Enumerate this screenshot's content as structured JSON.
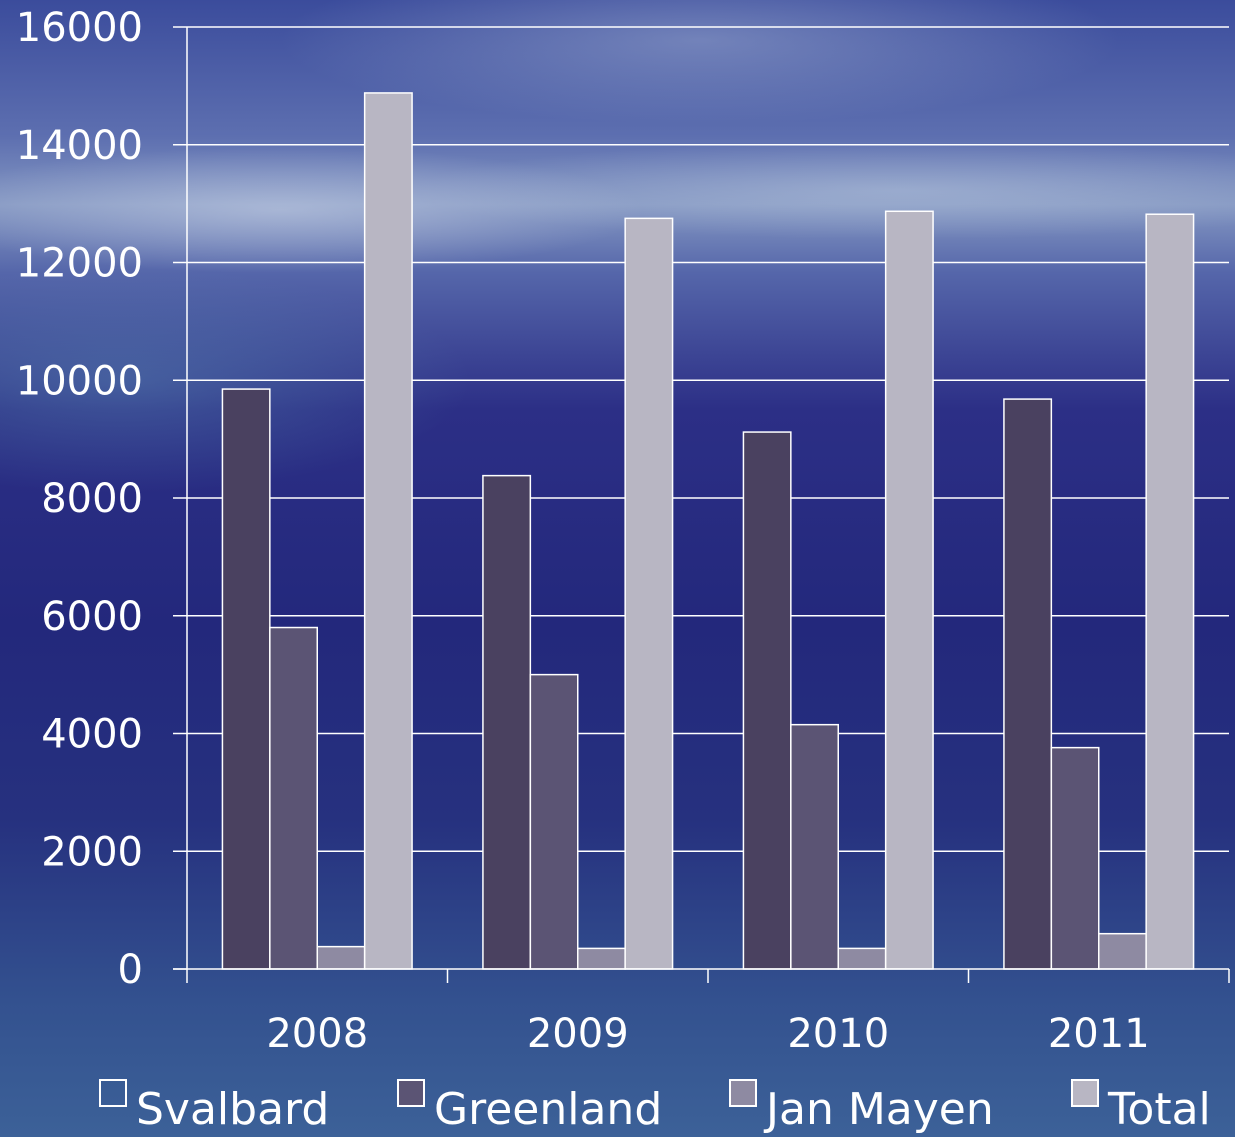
{
  "chart_data": {
    "type": "bar",
    "categories": [
      "2008",
      "2009",
      "2010",
      "2011"
    ],
    "series": [
      {
        "name": "Svalbard",
        "values": [
          9850,
          8380,
          9120,
          9680
        ],
        "color": "#4a4160"
      },
      {
        "name": "Greenland",
        "values": [
          5800,
          5000,
          4150,
          3760
        ],
        "color": "#5b5474"
      },
      {
        "name": "Jan Mayen",
        "values": [
          380,
          350,
          350,
          600
        ],
        "color": "#8e8aa2"
      },
      {
        "name": "Total",
        "values": [
          14880,
          12750,
          12870,
          12820
        ],
        "color": "#b8b6c3"
      }
    ],
    "ylim": [
      0,
      16000
    ],
    "yticks": [
      "0",
      "2000",
      "4000",
      "6000",
      "8000",
      "10000",
      "12000",
      "14000",
      "16000"
    ],
    "grid": true,
    "legend_position": "bottom",
    "colors": {
      "axis": "#ffffff",
      "gridline": "#ffffff",
      "text": "#ffffff"
    }
  }
}
